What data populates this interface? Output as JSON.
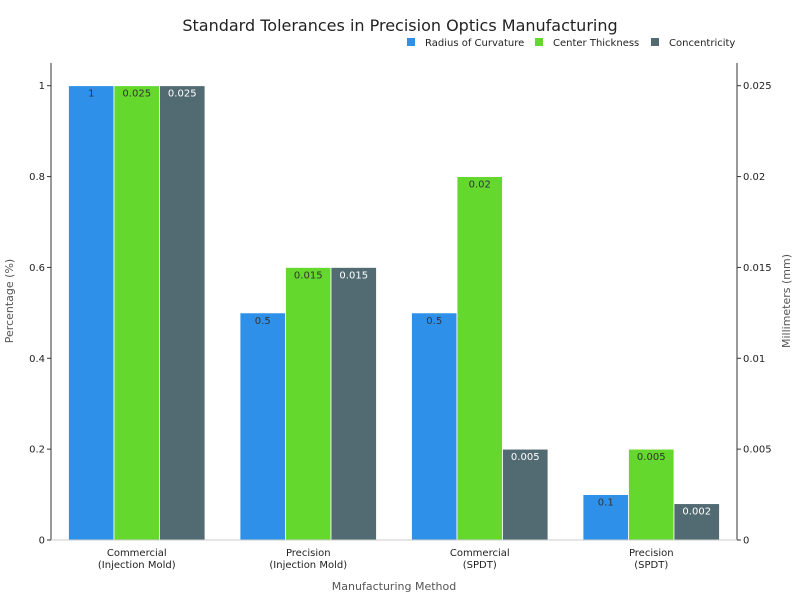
{
  "chart_data": {
    "type": "bar",
    "title": "Standard Tolerances in Precision Optics Manufacturing",
    "xlabel": "Manufacturing Method",
    "ylabel_left": "Percentage (%)",
    "ylabel_right": "Millimeters (mm)",
    "categories": [
      [
        "Commercial",
        "(Injection Mold)"
      ],
      [
        "Precision",
        "(Injection Mold)"
      ],
      [
        "Commercial",
        "(SPDT)"
      ],
      [
        "Precision",
        "(SPDT)"
      ]
    ],
    "ylim_left": [
      0,
      1.05
    ],
    "ylim_right": [
      0,
      0.02625
    ],
    "yticks_left": [
      "0",
      "0.2",
      "0.4",
      "0.6",
      "0.8",
      "1"
    ],
    "yticks_right": [
      "0",
      "0.005",
      "0.01",
      "0.015",
      "0.02",
      "0.025"
    ],
    "legend_position": "top-right",
    "grid": false,
    "series": [
      {
        "name": "Radius of Curvature",
        "axis": "left",
        "color": "#2e90e8",
        "label_color": "#333333",
        "values": [
          1,
          0.5,
          0.5,
          0.1
        ],
        "labels": [
          "1",
          "0.5",
          "0.5",
          "0.1"
        ]
      },
      {
        "name": "Center Thickness",
        "axis": "right",
        "color": "#64d82c",
        "label_color": "#333333",
        "values": [
          0.025,
          0.015,
          0.02,
          0.005
        ],
        "labels": [
          "0.025",
          "0.015",
          "0.02",
          "0.005"
        ]
      },
      {
        "name": "Concentricity",
        "axis": "right",
        "color": "#526a72",
        "label_color": "#ffffff",
        "values": [
          0.025,
          0.015,
          0.005,
          0.002
        ],
        "labels": [
          "0.025",
          "0.015",
          "0.005",
          "0.002"
        ]
      }
    ]
  }
}
